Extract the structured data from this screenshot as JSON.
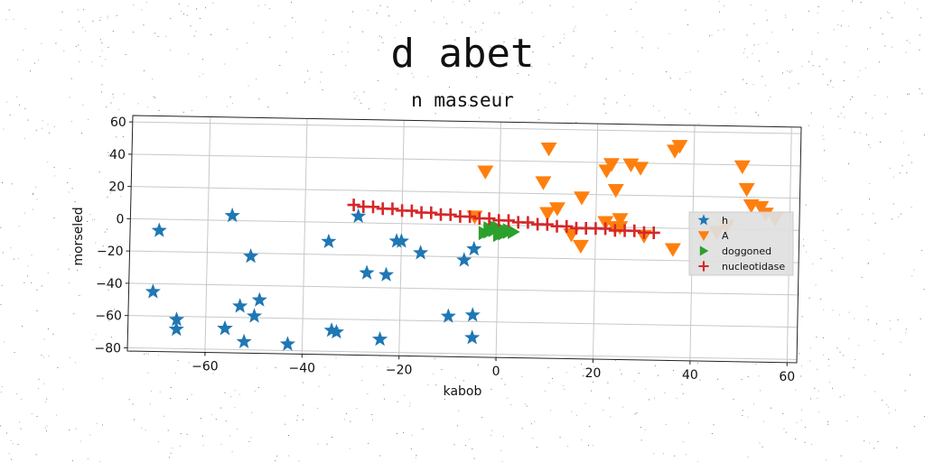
{
  "title": "d abet",
  "subtitle": "n masseur",
  "chart_data": {
    "type": "scatter",
    "xlabel": "kabob",
    "ylabel": "morseled",
    "xlim": [
      -76,
      62
    ],
    "ylim": [
      -82,
      64
    ],
    "xticks": [
      -60,
      -40,
      -20,
      0,
      20,
      40,
      60
    ],
    "yticks": [
      -80,
      -60,
      -40,
      -20,
      0,
      20,
      40,
      60
    ],
    "xtick_labels": [
      "−60",
      "−40",
      "−20",
      "0",
      "20",
      "40",
      "60"
    ],
    "ytick_labels": [
      "−80",
      "−60",
      "−40",
      "−20",
      "0",
      "20",
      "40",
      "60"
    ],
    "grid": true,
    "legend_position": "right",
    "series": [
      {
        "name": "h",
        "marker": "star",
        "color": "#1f77b4",
        "x": [
          -70,
          -55,
          -51,
          -49,
          -56,
          -50,
          -53,
          -52,
          -56,
          -66,
          -66,
          -71,
          -43,
          -35,
          -33,
          -29,
          -21,
          -20,
          -16,
          -27,
          -23,
          -24,
          -7,
          -5,
          -10,
          -5,
          -5,
          -34
        ],
        "y": [
          -7,
          3,
          -22,
          -49,
          -67,
          -59,
          -53,
          -75,
          -67,
          -62,
          -68,
          -45,
          -76,
          -12,
          -68,
          4,
          -11,
          -11,
          -18,
          -31,
          -32,
          -72,
          -22,
          -15,
          -57,
          -56,
          -70,
          -67
        ]
      },
      {
        "name": "A",
        "marker": "triangle_down",
        "color": "#ff7f0e",
        "x": [
          -3,
          10,
          9,
          10,
          12,
          17,
          22,
          23,
          24,
          25,
          27,
          29,
          36,
          37,
          50,
          51,
          52,
          54,
          55,
          57,
          22,
          24,
          15,
          17,
          25,
          30,
          36,
          47,
          45,
          -5
        ],
        "y": [
          33,
          48,
          27,
          8,
          11,
          18,
          35,
          39,
          23,
          5,
          39,
          37,
          48,
          51,
          39,
          25,
          15,
          14,
          10,
          7,
          3,
          0,
          -5,
          -12,
          0,
          -5,
          -13,
          2,
          -2,
          5
        ]
      },
      {
        "name": "doggoned",
        "marker": "triangle_right",
        "color": "#2ca02c",
        "x": [
          -3,
          -2,
          -1,
          0,
          1,
          2,
          3,
          -2,
          -1,
          0,
          1,
          2
        ],
        "y": [
          -5,
          -4,
          -3,
          -2,
          -3,
          -4,
          -4,
          -2,
          -1,
          -6,
          -5,
          -3
        ]
      },
      {
        "name": "nucleotidase",
        "marker": "plus",
        "color": "#d62728",
        "x": [
          -30,
          -28,
          -26,
          -24,
          -22,
          -20,
          -18,
          -16,
          -14,
          -12,
          -10,
          -8,
          -6,
          -4,
          -2,
          0,
          2,
          4,
          6,
          8,
          10,
          12,
          14,
          16,
          18,
          20,
          22,
          24,
          26,
          28,
          30,
          32
        ],
        "y": [
          11,
          10,
          10,
          9,
          9,
          8,
          8,
          7,
          7,
          6,
          6,
          5,
          5,
          4,
          4,
          3,
          3,
          2,
          2,
          1,
          1,
          0,
          0,
          -1,
          -1,
          -1,
          -1,
          -2,
          -2,
          -2,
          -3,
          -3
        ]
      }
    ]
  }
}
